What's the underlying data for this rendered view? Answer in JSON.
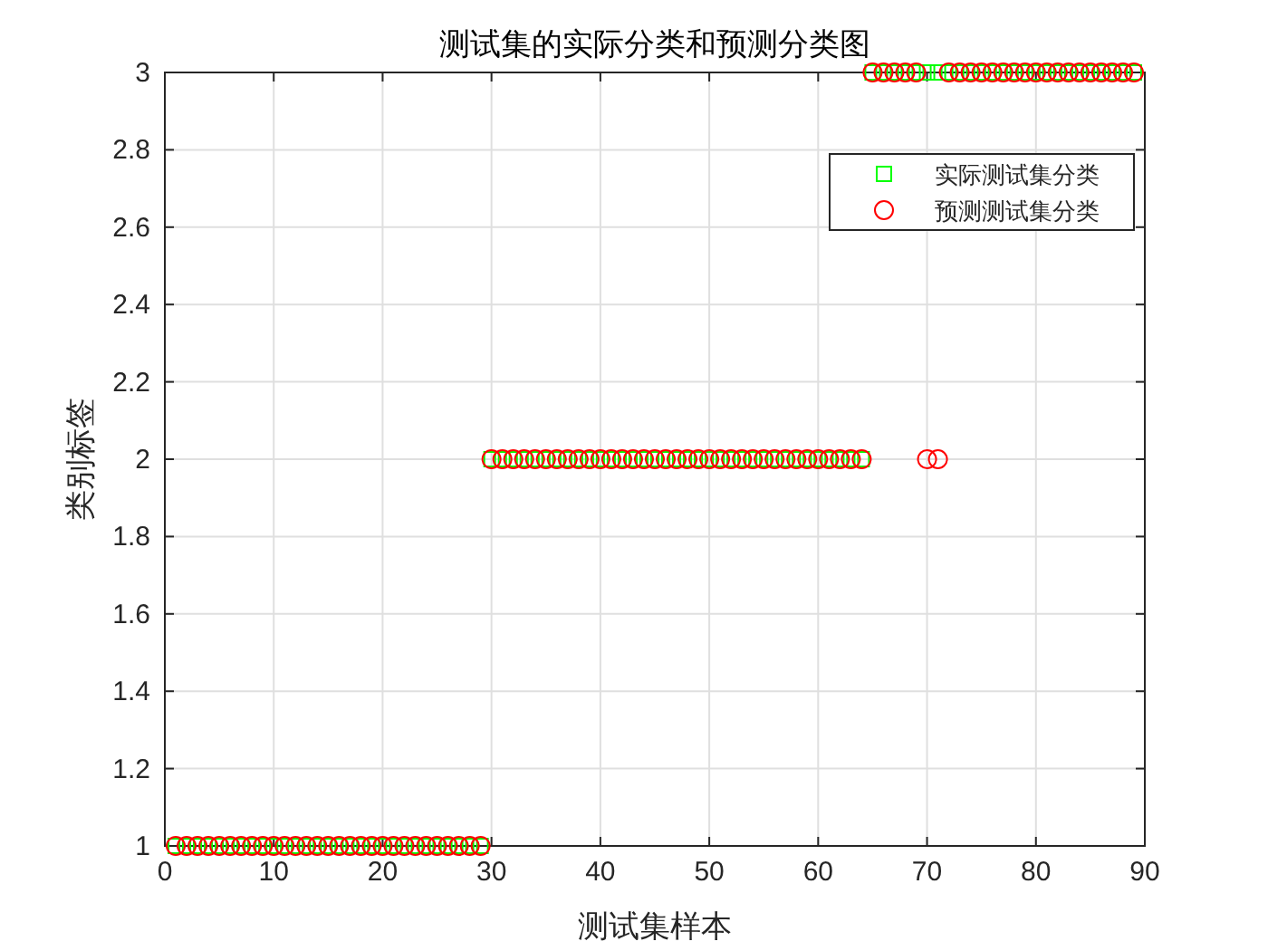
{
  "chart_data": {
    "type": "scatter",
    "title": "测试集的实际分类和预测分类图",
    "xlabel": "测试集样本",
    "ylabel": "类别标签",
    "x": [
      1,
      2,
      3,
      4,
      5,
      6,
      7,
      8,
      9,
      10,
      11,
      12,
      13,
      14,
      15,
      16,
      17,
      18,
      19,
      20,
      21,
      22,
      23,
      24,
      25,
      26,
      27,
      28,
      29,
      30,
      31,
      32,
      33,
      34,
      35,
      36,
      37,
      38,
      39,
      40,
      41,
      42,
      43,
      44,
      45,
      46,
      47,
      48,
      49,
      50,
      51,
      52,
      53,
      54,
      55,
      56,
      57,
      58,
      59,
      60,
      61,
      62,
      63,
      64,
      65,
      66,
      67,
      68,
      69,
      70,
      71,
      72,
      73,
      74,
      75,
      76,
      77,
      78,
      79,
      80,
      81,
      82,
      83,
      84,
      85,
      86,
      87,
      88,
      89
    ],
    "series": [
      {
        "name": "实际测试集分类",
        "color": "#00ff00",
        "marker": "square",
        "values": [
          1,
          1,
          1,
          1,
          1,
          1,
          1,
          1,
          1,
          1,
          1,
          1,
          1,
          1,
          1,
          1,
          1,
          1,
          1,
          1,
          1,
          1,
          1,
          1,
          1,
          1,
          1,
          1,
          1,
          2,
          2,
          2,
          2,
          2,
          2,
          2,
          2,
          2,
          2,
          2,
          2,
          2,
          2,
          2,
          2,
          2,
          2,
          2,
          2,
          2,
          2,
          2,
          2,
          2,
          2,
          2,
          2,
          2,
          2,
          2,
          2,
          2,
          2,
          2,
          3,
          3,
          3,
          3,
          3,
          3,
          3,
          3,
          3,
          3,
          3,
          3,
          3,
          3,
          3,
          3,
          3,
          3,
          3,
          3,
          3,
          3,
          3,
          3,
          3
        ]
      },
      {
        "name": "预测测试集分类",
        "color": "#ff0000",
        "marker": "circle",
        "values": [
          1,
          1,
          1,
          1,
          1,
          1,
          1,
          1,
          1,
          1,
          1,
          1,
          1,
          1,
          1,
          1,
          1,
          1,
          1,
          1,
          1,
          1,
          1,
          1,
          1,
          1,
          1,
          1,
          1,
          2,
          2,
          2,
          2,
          2,
          2,
          2,
          2,
          2,
          2,
          2,
          2,
          2,
          2,
          2,
          2,
          2,
          2,
          2,
          2,
          2,
          2,
          2,
          2,
          2,
          2,
          2,
          2,
          2,
          2,
          2,
          2,
          2,
          2,
          2,
          3,
          3,
          3,
          3,
          3,
          2,
          2,
          3,
          3,
          3,
          3,
          3,
          3,
          3,
          3,
          3,
          3,
          3,
          3,
          3,
          3,
          3,
          3,
          3,
          3
        ]
      }
    ],
    "xlim": [
      0,
      90
    ],
    "xticks": [
      0,
      10,
      20,
      30,
      40,
      50,
      60,
      70,
      80,
      90
    ],
    "ylim": [
      1,
      3
    ],
    "yticks": [
      1,
      1.2,
      1.4,
      1.6,
      1.8,
      2,
      2.2,
      2.4,
      2.6,
      2.8,
      3
    ],
    "grid": true,
    "legend": "top right"
  }
}
